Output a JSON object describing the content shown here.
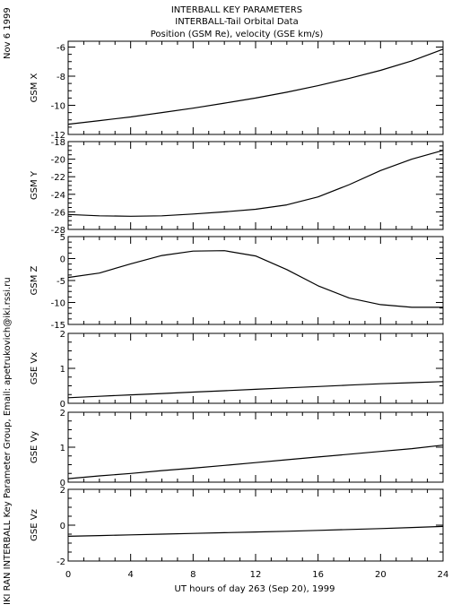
{
  "header": {
    "title_lines": [
      "INTERBALL KEY PARAMETERS",
      "INTERBALL-Tail Orbital Data",
      "Position (GSM Re), velocity (GSE km/s)"
    ],
    "date_label": "Nov  6 1999",
    "credit": "IKI RAN INTERBALL Key Parameter Group, Email: apetrukovich@iki.rssi.ru"
  },
  "chart_data": {
    "type": "line",
    "xlabel": "UT hours of day 263 (Sep 20), 1999",
    "xlim": [
      0,
      24
    ],
    "xticks": [
      0,
      4,
      8,
      12,
      16,
      20,
      24
    ],
    "xtick_labels": [
      "0",
      "4",
      "8",
      "12",
      "16",
      "20",
      "24"
    ],
    "x": [
      0,
      2,
      4,
      6,
      8,
      10,
      12,
      14,
      16,
      18,
      20,
      22,
      24
    ],
    "line_color": "#000000",
    "panels": [
      {
        "ylabel": "GSM X",
        "ylim": [
          -12,
          -5.6
        ],
        "yticks": [
          -12,
          -10,
          -8,
          -6
        ],
        "ytick_labels": [
          "-12",
          "-10",
          "-8",
          "-6"
        ],
        "values": [
          -11.3,
          -11.05,
          -10.8,
          -10.5,
          -10.2,
          -9.85,
          -9.5,
          -9.1,
          -8.65,
          -8.15,
          -7.6,
          -6.95,
          -6.15
        ]
      },
      {
        "ylabel": "GSM Y",
        "ylim": [
          -28,
          -18
        ],
        "yticks": [
          -28,
          -26,
          -24,
          -22,
          -20,
          -18
        ],
        "ytick_labels": [
          "-28",
          "-26",
          "-24",
          "-22",
          "-20",
          "-18"
        ],
        "values": [
          -26.3,
          -26.45,
          -26.5,
          -26.45,
          -26.25,
          -26.0,
          -25.7,
          -25.2,
          -24.3,
          -22.9,
          -21.3,
          -20.0,
          -19.0
        ]
      },
      {
        "ylabel": "GSM Z",
        "ylim": [
          -15,
          5
        ],
        "yticks": [
          -15,
          -10,
          -5,
          0,
          5
        ],
        "ytick_labels": [
          "-15",
          "-10",
          "-5",
          "0",
          "5"
        ],
        "values": [
          -4.3,
          -3.3,
          -1.2,
          0.7,
          1.7,
          1.8,
          0.6,
          -2.5,
          -6.2,
          -9.0,
          -10.5,
          -11.1,
          -11.1
        ]
      },
      {
        "ylabel": "GSE Vx",
        "ylim": [
          0,
          2
        ],
        "yticks": [
          0,
          1,
          2
        ],
        "ytick_labels": [
          "0",
          "1",
          "2"
        ],
        "values": [
          0.16,
          0.2,
          0.24,
          0.28,
          0.32,
          0.36,
          0.4,
          0.44,
          0.48,
          0.52,
          0.56,
          0.59,
          0.62
        ]
      },
      {
        "ylabel": "GSE Vy",
        "ylim": [
          0,
          2
        ],
        "yticks": [
          0,
          1,
          2
        ],
        "ytick_labels": [
          "0",
          "1",
          "2"
        ],
        "values": [
          0.1,
          0.18,
          0.25,
          0.33,
          0.4,
          0.48,
          0.56,
          0.64,
          0.72,
          0.8,
          0.88,
          0.96,
          1.06
        ]
      },
      {
        "ylabel": "GSE Vz",
        "ylim": [
          -2,
          2
        ],
        "yticks": [
          -2,
          0,
          2
        ],
        "ytick_labels": [
          "-2",
          "0",
          "2"
        ],
        "values": [
          -0.62,
          -0.58,
          -0.54,
          -0.5,
          -0.46,
          -0.42,
          -0.38,
          -0.34,
          -0.29,
          -0.24,
          -0.19,
          -0.13,
          -0.07
        ]
      }
    ]
  }
}
